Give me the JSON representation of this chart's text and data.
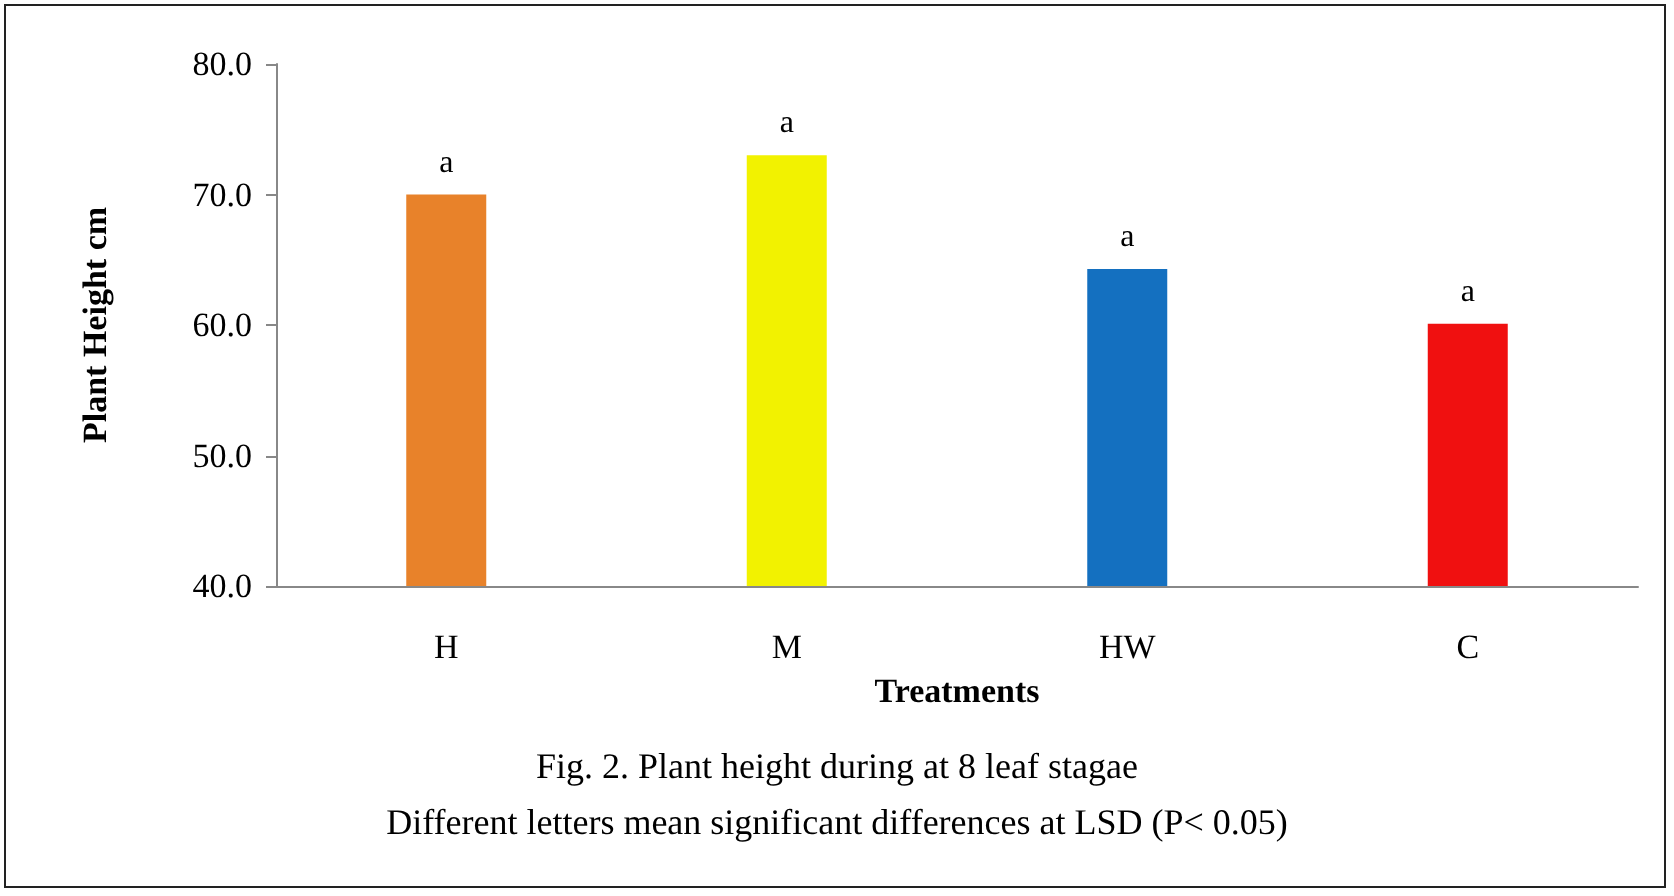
{
  "chart_data": {
    "type": "bar",
    "xlabel": "Treatments",
    "ylabel": "Plant Height cm",
    "categories": [
      "H",
      "M",
      "HW",
      "C"
    ],
    "values": [
      70.0,
      73.0,
      64.3,
      60.1
    ],
    "colors": [
      "#e8822a",
      "#f2f200",
      "#1470c0",
      "#f01010"
    ],
    "value_labels": [
      "a",
      "a",
      "a",
      "a"
    ],
    "ylim": [
      40,
      80
    ],
    "yticks": [
      {
        "value": 40,
        "label": "40.0"
      },
      {
        "value": 50,
        "label": "50.0"
      },
      {
        "value": 60,
        "label": "60.0"
      },
      {
        "value": 70,
        "label": "70.0"
      },
      {
        "value": 80,
        "label": "80.0"
      }
    ],
    "grid": false,
    "annotations": [
      "Fig. 2. Plant height during at 8 leaf stagae",
      "Different letters mean significant differences at LSD (P< 0.05)"
    ]
  }
}
